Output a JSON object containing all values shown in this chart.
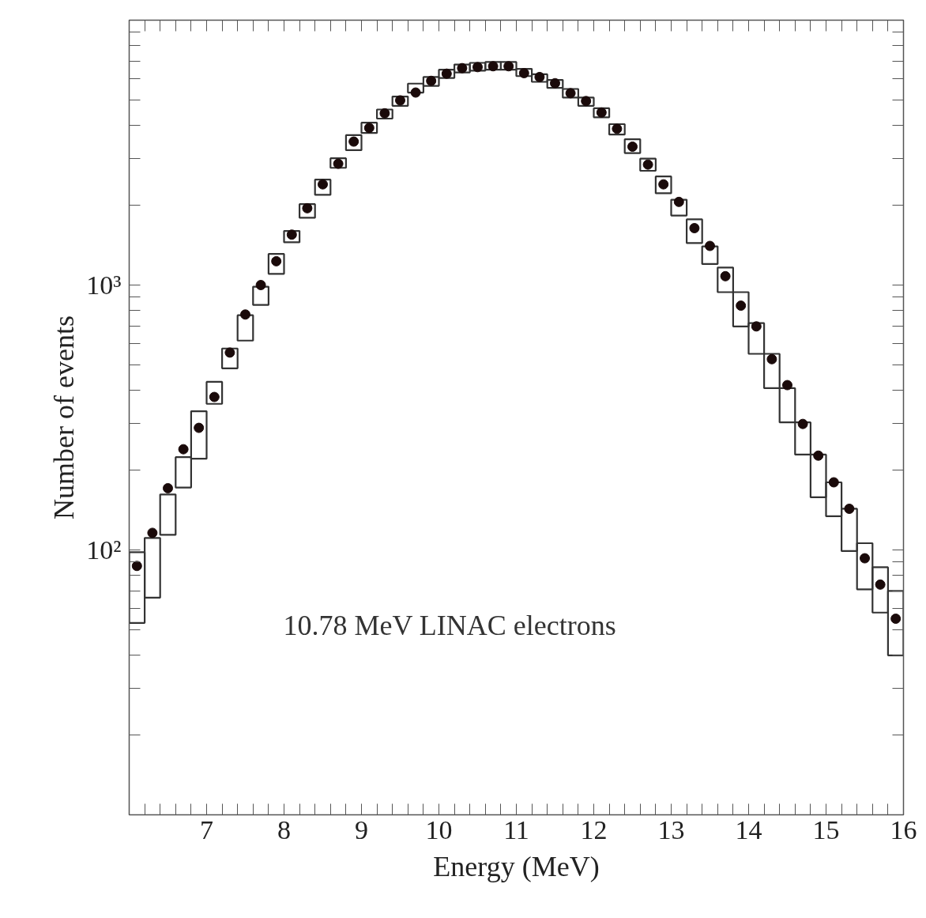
{
  "chart_data": {
    "type": "scatter",
    "xlabel": "Energy (MeV)",
    "ylabel": "Number of events",
    "annotations": [
      "10.78 MeV LINAC electrons"
    ],
    "x": [
      6.1,
      6.3,
      6.5,
      6.7,
      6.9,
      7.1,
      7.3,
      7.5,
      7.7,
      7.9,
      8.1,
      8.3,
      8.5,
      8.7,
      8.9,
      9.1,
      9.3,
      9.5,
      9.7,
      9.9,
      10.1,
      10.3,
      10.5,
      10.7,
      10.9,
      11.1,
      11.3,
      11.5,
      11.7,
      11.9,
      12.1,
      12.3,
      12.5,
      12.7,
      12.9,
      13.1,
      13.3,
      13.5,
      13.7,
      13.9,
      14.1,
      14.3,
      14.5,
      14.7,
      14.9,
      15.1,
      15.3,
      15.5,
      15.7,
      15.9
    ],
    "series": [
      {
        "type": "bar",
        "color": "#333333",
        "base": [
          53,
          66,
          114,
          172,
          221,
          356,
          485,
          617,
          841,
          1102,
          1450,
          1795,
          2190,
          2770,
          3230,
          3750,
          4250,
          4750,
          5330,
          5650,
          6050,
          6350,
          6450,
          6500,
          6500,
          6150,
          5850,
          5550,
          5100,
          4750,
          4300,
          3700,
          3150,
          2700,
          2220,
          1830,
          1440,
          1200,
          940,
          698,
          550,
          408,
          303,
          229,
          158,
          134,
          99,
          71,
          58,
          40
        ],
        "values": [
          45,
          45,
          48,
          52,
          113,
          75,
          91,
          152,
          145,
          208,
          150,
          225,
          310,
          240,
          450,
          350,
          350,
          400,
          430,
          450,
          450,
          450,
          450,
          450,
          450,
          400,
          400,
          400,
          400,
          350,
          350,
          350,
          400,
          300,
          350,
          270,
          330,
          200,
          225,
          242,
          168,
          142,
          105,
          74,
          71,
          46,
          44,
          35,
          28,
          30
        ]
      },
      {
        "color": "#1a0a0a",
        "values": [
          87,
          116,
          171,
          240,
          289,
          378,
          556,
          774,
          1000,
          1230,
          1550,
          1950,
          2400,
          2870,
          3480,
          3920,
          4450,
          4980,
          5330,
          5900,
          6280,
          6590,
          6650,
          6700,
          6700,
          6310,
          6100,
          5780,
          5300,
          4950,
          4480,
          3890,
          3330,
          2850,
          2400,
          2060,
          1640,
          1405,
          1080,
          836,
          698,
          525,
          419,
          299,
          227,
          180,
          143,
          93,
          74,
          55
        ]
      }
    ],
    "marker": "circle",
    "log": true,
    "grid": false,
    "xlim": [
      6,
      16
    ],
    "ylim": [
      10,
      10000
    ],
    "xticks": [
      {
        "value": 6.2,
        "label": null
      },
      {
        "value": 6.4,
        "label": null
      },
      {
        "value": 6.6,
        "label": null
      },
      {
        "value": 6.8,
        "label": null
      },
      7,
      {
        "value": 7.2,
        "label": null
      },
      {
        "value": 7.4,
        "label": null
      },
      {
        "value": 7.6,
        "label": null
      },
      {
        "value": 7.8,
        "label": null
      },
      8,
      {
        "value": 8.2,
        "label": null
      },
      {
        "value": 8.4,
        "label": null
      },
      {
        "value": 8.6,
        "label": null
      },
      {
        "value": 8.8,
        "label": null
      },
      9,
      {
        "value": 9.2,
        "label": null
      },
      {
        "value": 9.4,
        "label": null
      },
      {
        "value": 9.6,
        "label": null
      },
      {
        "value": 9.8,
        "label": null
      },
      10,
      {
        "value": 10.2,
        "label": null
      },
      {
        "value": 10.4,
        "label": null
      },
      {
        "value": 10.6,
        "label": null
      },
      {
        "value": 10.8,
        "label": null
      },
      11,
      {
        "value": 11.2,
        "label": null
      },
      {
        "value": 11.4,
        "label": null
      },
      {
        "value": 11.6,
        "label": null
      },
      {
        "value": 11.8,
        "label": null
      },
      12,
      {
        "value": 12.2,
        "label": null
      },
      {
        "value": 12.4,
        "label": null
      },
      {
        "value": 12.6,
        "label": null
      },
      {
        "value": 12.8,
        "label": null
      },
      13,
      {
        "value": 13.2,
        "label": null
      },
      {
        "value": 13.4,
        "label": null
      },
      {
        "value": 13.6,
        "label": null
      },
      {
        "value": 13.8,
        "label": null
      },
      14,
      {
        "value": 14.2,
        "label": null
      },
      {
        "value": 14.4,
        "label": null
      },
      {
        "value": 14.6,
        "label": null
      },
      {
        "value": 14.8,
        "label": null
      },
      15,
      {
        "value": 15.2,
        "label": null
      },
      {
        "value": 15.4,
        "label": null
      },
      {
        "value": 15.6,
        "label": null
      },
      {
        "value": 15.8,
        "label": null
      },
      16
    ],
    "yticks": [
      {
        "value": 20,
        "label": null
      },
      {
        "value": 30,
        "label": null
      },
      {
        "value": 40,
        "label": null
      },
      {
        "value": 50,
        "label": null
      },
      {
        "value": 60,
        "label": null
      },
      {
        "value": 70,
        "label": null
      },
      {
        "value": 80,
        "label": null
      },
      {
        "value": 90,
        "label": null
      },
      {
        "value": 100,
        "label": "10²"
      },
      {
        "value": 200,
        "label": null
      },
      {
        "value": 300,
        "label": null
      },
      {
        "value": 400,
        "label": null
      },
      {
        "value": 500,
        "label": null
      },
      {
        "value": 600,
        "label": null
      },
      {
        "value": 700,
        "label": null
      },
      {
        "value": 800,
        "label": null
      },
      {
        "value": 900,
        "label": null
      },
      {
        "value": 1000,
        "label": "10³"
      },
      {
        "value": 2000,
        "label": null
      },
      {
        "value": 3000,
        "label": null
      },
      {
        "value": 4000,
        "label": null
      },
      {
        "value": 5000,
        "label": null
      },
      {
        "value": 6000,
        "label": null
      },
      {
        "value": 7000,
        "label": null
      },
      {
        "value": 8000,
        "label": null
      },
      {
        "value": 9000,
        "label": null
      }
    ]
  }
}
